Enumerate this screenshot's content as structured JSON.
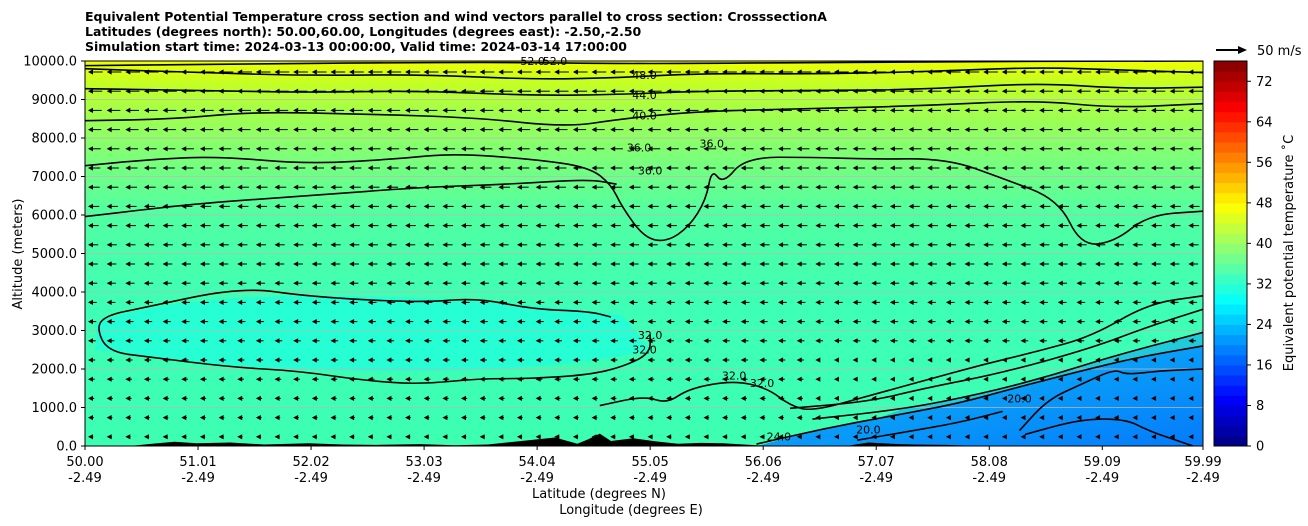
{
  "chart_data": {
    "type": "contour",
    "title_lines": [
      "Equivalent Potential Temperature cross section and wind vectors parallel to cross section: CrosssectionA",
      "Latitudes (degrees north): 50.00,60.00, Longitudes (degrees east): -2.50,-2.50",
      "Simulation start time: 2024-03-13 00:00:00, Valid time: 2024-03-14 17:00:00"
    ],
    "ylabel": "Altitude (meters)",
    "xlabel_lat": "Latitude (degrees N)",
    "xlabel_lon": "Longitude (degrees E)",
    "ylim": [
      0,
      10000
    ],
    "yticks": [
      0,
      1000,
      2000,
      3000,
      4000,
      5000,
      6000,
      7000,
      8000,
      9000,
      10000
    ],
    "ytick_labels": [
      "0.0",
      "1000.0",
      "2000.0",
      "3000.0",
      "4000.0",
      "5000.0",
      "6000.0",
      "7000.0",
      "8000.0",
      "9000.0",
      "10000.0"
    ],
    "xlim": [
      50.0,
      59.99
    ],
    "xticks": [
      50.0,
      51.01,
      52.02,
      53.03,
      54.04,
      55.05,
      56.06,
      57.07,
      58.08,
      59.09,
      59.99
    ],
    "xtick_labels_lat": [
      "50.00",
      "51.01",
      "52.02",
      "53.03",
      "54.04",
      "55.05",
      "56.06",
      "57.07",
      "58.08",
      "59.09",
      "59.99"
    ],
    "xtick_labels_lon": [
      "-2.49",
      "-2.49",
      "-2.49",
      "-2.49",
      "-2.49",
      "-2.49",
      "-2.49",
      "-2.49",
      "-2.49",
      "-2.49",
      "-2.49"
    ],
    "colorbar": {
      "label": "Equivalent potential temperature ˚C",
      "min": 0,
      "max": 76,
      "step": 2,
      "ticks": [
        0,
        8,
        16,
        24,
        32,
        40,
        48,
        56,
        64,
        72
      ],
      "tick_labels": [
        "0",
        "8",
        "16",
        "24",
        "32",
        "40",
        "48",
        "56",
        "64",
        "72"
      ]
    },
    "quiver_key": "50 m/s",
    "contour_labels": [
      {
        "text": "52.0",
        "lat": 54.0,
        "alt": 9950
      },
      {
        "text": "52.0",
        "lat": 54.2,
        "alt": 9950
      },
      {
        "text": "48.0",
        "lat": 55.0,
        "alt": 9580
      },
      {
        "text": "44.0",
        "lat": 55.0,
        "alt": 9060
      },
      {
        "text": "40.0",
        "lat": 55.0,
        "alt": 8530
      },
      {
        "text": "36.0",
        "lat": 54.95,
        "alt": 7700
      },
      {
        "text": "36.0",
        "lat": 55.05,
        "alt": 7100
      },
      {
        "text": "36.0",
        "lat": 55.6,
        "alt": 7800
      },
      {
        "text": "32.0",
        "lat": 55.0,
        "alt": 2450
      },
      {
        "text": "32.0",
        "lat": 55.05,
        "alt": 2830
      },
      {
        "text": "32.0",
        "lat": 55.8,
        "alt": 1780
      },
      {
        "text": "32.0",
        "lat": 56.05,
        "alt": 1580
      },
      {
        "text": "24.0",
        "lat": 56.2,
        "alt": 200
      },
      {
        "text": "20.0",
        "lat": 57.0,
        "alt": 380
      },
      {
        "text": "20.0",
        "lat": 58.35,
        "alt": 1180
      }
    ],
    "contour_lines": [
      {
        "level": 52,
        "points": [
          [
            50.0,
            9880
          ],
          [
            53.5,
            9980
          ],
          [
            55.0,
            9920
          ],
          [
            57.0,
            9980
          ],
          [
            59.99,
            10000
          ]
        ]
      },
      {
        "level": 48,
        "points": [
          [
            50.0,
            9800
          ],
          [
            51.0,
            9700
          ],
          [
            52.0,
            9620
          ],
          [
            53.0,
            9650
          ],
          [
            54.0,
            9520
          ],
          [
            54.8,
            9570
          ],
          [
            55.5,
            9680
          ],
          [
            56.5,
            9660
          ],
          [
            57.5,
            9720
          ],
          [
            58.5,
            9840
          ],
          [
            59.3,
            9760
          ],
          [
            59.99,
            9700
          ]
        ]
      },
      {
        "level": 44,
        "points": [
          [
            50.0,
            9280
          ],
          [
            51.0,
            9240
          ],
          [
            52.0,
            9180
          ],
          [
            53.0,
            9230
          ],
          [
            54.0,
            9100
          ],
          [
            54.8,
            9130
          ],
          [
            55.5,
            9220
          ],
          [
            56.5,
            9230
          ],
          [
            57.5,
            9260
          ],
          [
            58.5,
            9430
          ],
          [
            59.3,
            9280
          ],
          [
            59.99,
            9320
          ]
        ]
      },
      {
        "level": 40,
        "points": [
          [
            50.0,
            8450
          ],
          [
            50.8,
            8490
          ],
          [
            51.5,
            8680
          ],
          [
            52.5,
            8620
          ],
          [
            53.5,
            8530
          ],
          [
            54.3,
            8280
          ],
          [
            54.8,
            8500
          ],
          [
            55.5,
            8700
          ],
          [
            56.5,
            8760
          ],
          [
            57.5,
            8840
          ],
          [
            58.5,
            8980
          ],
          [
            59.2,
            8780
          ],
          [
            59.99,
            8890
          ]
        ]
      },
      {
        "level": 36,
        "points": [
          [
            50.0,
            7280
          ],
          [
            50.6,
            7450
          ],
          [
            51.2,
            7520
          ],
          [
            52.0,
            7320
          ],
          [
            52.8,
            7460
          ],
          [
            53.3,
            7600
          ],
          [
            54.0,
            7450
          ],
          [
            54.5,
            7250
          ],
          [
            54.7,
            6800
          ],
          [
            54.8,
            6200
          ],
          [
            55.0,
            5400
          ],
          [
            55.2,
            5300
          ],
          [
            55.4,
            5700
          ],
          [
            55.55,
            6400
          ],
          [
            55.6,
            7200
          ],
          [
            55.7,
            6800
          ],
          [
            55.9,
            7500
          ],
          [
            56.5,
            7500
          ],
          [
            57.0,
            7450
          ],
          [
            57.7,
            7470
          ],
          [
            58.2,
            6950
          ],
          [
            58.7,
            6400
          ],
          [
            58.9,
            5200
          ],
          [
            59.2,
            5300
          ],
          [
            59.5,
            6000
          ],
          [
            59.99,
            6100
          ]
        ]
      },
      {
        "level": 36,
        "points": [
          [
            50.0,
            5960
          ],
          [
            51.0,
            6300
          ],
          [
            52.0,
            6500
          ],
          [
            53.0,
            6720
          ],
          [
            53.8,
            6800
          ],
          [
            54.5,
            6930
          ],
          [
            54.75,
            6800
          ]
        ]
      },
      {
        "level": 32,
        "points": [
          [
            54.7,
            3350
          ],
          [
            54.5,
            3500
          ],
          [
            54.0,
            3550
          ],
          [
            53.5,
            3850
          ],
          [
            53.0,
            3720
          ],
          [
            52.0,
            3880
          ],
          [
            51.4,
            4130
          ],
          [
            50.5,
            3580
          ],
          [
            50.2,
            3400
          ],
          [
            50.1,
            3100
          ],
          [
            50.2,
            2450
          ],
          [
            50.6,
            2300
          ],
          [
            51.3,
            2050
          ],
          [
            51.9,
            1950
          ],
          [
            52.5,
            1700
          ],
          [
            53.0,
            1600
          ],
          [
            53.5,
            1750
          ],
          [
            54.0,
            1750
          ],
          [
            54.5,
            1850
          ],
          [
            54.8,
            2050
          ],
          [
            55.05,
            2400
          ],
          [
            55.05,
            2900
          ]
        ]
      },
      {
        "level": 32,
        "points": [
          [
            54.6,
            1050
          ],
          [
            55.0,
            1300
          ],
          [
            55.2,
            1100
          ],
          [
            55.4,
            1500
          ],
          [
            55.8,
            1700
          ],
          [
            56.1,
            1500
          ],
          [
            56.3,
            1050
          ],
          [
            56.5,
            900
          ],
          [
            57.0,
            1300
          ],
          [
            57.5,
            1700
          ],
          [
            58.0,
            2100
          ],
          [
            58.5,
            2450
          ],
          [
            59.0,
            2850
          ],
          [
            59.5,
            3700
          ],
          [
            59.99,
            3900
          ]
        ]
      },
      {
        "level": 28,
        "points": [
          [
            56.3,
            980
          ],
          [
            57.0,
            1150
          ],
          [
            57.5,
            1500
          ],
          [
            58.2,
            1900
          ],
          [
            59.0,
            2550
          ],
          [
            59.5,
            3100
          ],
          [
            59.99,
            3550
          ]
        ]
      },
      {
        "level": 28,
        "points": [
          [
            56.5,
            700
          ],
          [
            57.3,
            950
          ],
          [
            58.0,
            1350
          ],
          [
            58.6,
            1800
          ],
          [
            59.2,
            2350
          ],
          [
            59.99,
            2950
          ]
        ]
      },
      {
        "level": 24,
        "points": [
          [
            56.0,
            50
          ],
          [
            56.6,
            450
          ],
          [
            57.2,
            780
          ],
          [
            57.8,
            1100
          ],
          [
            58.3,
            1500
          ],
          [
            58.9,
            1950
          ],
          [
            59.4,
            2300
          ],
          [
            59.99,
            2600
          ]
        ]
      },
      {
        "level": 20,
        "points": [
          [
            56.9,
            150
          ],
          [
            57.3,
            350
          ],
          [
            57.8,
            600
          ],
          [
            58.2,
            900
          ]
        ]
      },
      {
        "level": 20,
        "points": [
          [
            58.35,
            400
          ],
          [
            58.6,
            1200
          ],
          [
            58.9,
            1600
          ],
          [
            59.2,
            2000
          ],
          [
            59.3,
            1850
          ],
          [
            59.6,
            1950
          ],
          [
            59.99,
            2000
          ]
        ]
      },
      {
        "level": 20,
        "points": [
          [
            58.4,
            300
          ],
          [
            58.9,
            700
          ],
          [
            59.3,
            700
          ],
          [
            59.5,
            400
          ],
          [
            59.7,
            200
          ],
          [
            59.9,
            0
          ]
        ]
      }
    ],
    "terrain": [
      [
        50.0,
        0
      ],
      [
        50.4,
        0
      ],
      [
        50.6,
        60
      ],
      [
        50.8,
        110
      ],
      [
        51.0,
        70
      ],
      [
        51.3,
        90
      ],
      [
        51.6,
        40
      ],
      [
        52.0,
        70
      ],
      [
        52.3,
        40
      ],
      [
        52.6,
        30
      ],
      [
        53.0,
        50
      ],
      [
        53.3,
        20
      ],
      [
        53.6,
        40
      ],
      [
        53.9,
        130
      ],
      [
        54.2,
        220
      ],
      [
        54.4,
        60
      ],
      [
        54.5,
        180
      ],
      [
        54.6,
        320
      ],
      [
        54.7,
        130
      ],
      [
        54.9,
        200
      ],
      [
        55.1,
        120
      ],
      [
        55.3,
        60
      ],
      [
        55.5,
        80
      ],
      [
        55.7,
        70
      ],
      [
        56.0,
        20
      ],
      [
        56.2,
        0
      ],
      [
        56.8,
        0
      ],
      [
        57.0,
        90
      ],
      [
        57.2,
        60
      ],
      [
        57.4,
        40
      ],
      [
        57.7,
        30
      ],
      [
        58.0,
        0
      ],
      [
        59.99,
        0
      ]
    ]
  }
}
